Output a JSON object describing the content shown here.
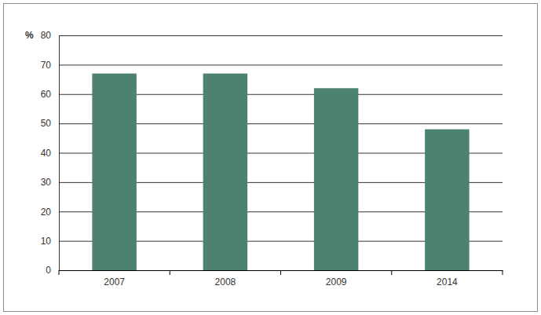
{
  "chart_data": {
    "type": "bar",
    "y_label": "%",
    "categories": [
      "2007",
      "2008",
      "2009",
      "2014"
    ],
    "values": [
      67,
      67,
      62,
      48
    ],
    "color": "#4e8270",
    "ylim": [
      0,
      80
    ],
    "yticks": [
      0,
      10,
      20,
      30,
      40,
      50,
      60,
      70,
      80
    ],
    "grid": true
  }
}
